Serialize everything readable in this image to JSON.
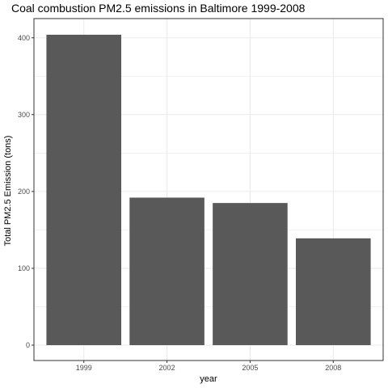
{
  "chart_data": {
    "type": "bar",
    "title": "Coal combustion PM2.5 emissions in Baltimore 1999-2008",
    "xlabel": "year",
    "ylabel": "Total PM2.5 Emission (tons)",
    "categories": [
      "1999",
      "2002",
      "2005",
      "2008"
    ],
    "values": [
      404,
      192,
      185,
      139
    ],
    "ylim": [
      -20,
      425
    ],
    "yticks": [
      0,
      100,
      200,
      300,
      400
    ],
    "grid": true,
    "bar_color": "#595959",
    "grid_color": "#ebebeb",
    "panel_border_color": "#333333"
  }
}
